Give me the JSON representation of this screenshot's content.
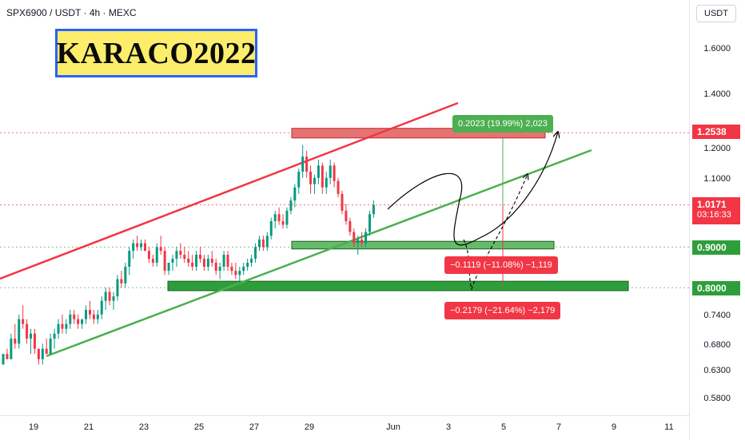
{
  "header": {
    "symbol": "SPX6900 / USDT · 4h · MEXC"
  },
  "watermark": {
    "text": "KARACO2022"
  },
  "axis": {
    "currency": "USDT",
    "price_ticks": [
      "1.6000",
      "1.4000",
      "1.2000",
      "1.1000",
      "0.7400",
      "0.6800",
      "0.6300",
      "0.5800"
    ],
    "time_ticks": [
      "19",
      "21",
      "23",
      "25",
      "27",
      "29",
      "Jun",
      "3",
      "5",
      "7",
      "9",
      "11"
    ]
  },
  "badges": {
    "target": "1.2538",
    "current_price": "1.0171",
    "countdown": "03:16:33",
    "support_1": "0.9000",
    "support_2": "0.8000"
  },
  "annotations": {
    "gain": "0.2023 (19.99%) 2,023",
    "loss_1": "−0.1119 (−11.08%) −1,119",
    "loss_2": "−0.2179 (−21.64%) −2,179"
  },
  "colors": {
    "up": "#089981",
    "down": "#f23645",
    "channel_top": "#f23645",
    "channel_bottom": "#4caf50",
    "brand_bg": "#fcee6b",
    "brand_border": "#2962ff",
    "target_zone": "#e57373",
    "support_zone": "#66bb6a",
    "support_zone_dark": "#2e9e3a"
  },
  "icons": {
    "currency": "dropdown-icon"
  },
  "chart_data": {
    "type": "candlestick",
    "title": "SPX6900 / USDT · 4h · MEXC",
    "ylim": [
      0.56,
      1.7
    ],
    "y_scale": "log",
    "x_labels": [
      "19",
      "21",
      "23",
      "25",
      "27",
      "29",
      "Jun",
      "3",
      "5",
      "7",
      "9",
      "11"
    ],
    "candles": [
      [
        0.64,
        0.66,
        0.64,
        0.66
      ],
      [
        0.66,
        0.67,
        0.65,
        0.65
      ],
      [
        0.65,
        0.7,
        0.65,
        0.69
      ],
      [
        0.69,
        0.72,
        0.67,
        0.68
      ],
      [
        0.68,
        0.74,
        0.67,
        0.73
      ],
      [
        0.73,
        0.76,
        0.71,
        0.72
      ],
      [
        0.72,
        0.73,
        0.68,
        0.69
      ],
      [
        0.69,
        0.71,
        0.66,
        0.7
      ],
      [
        0.7,
        0.71,
        0.66,
        0.67
      ],
      [
        0.67,
        0.67,
        0.64,
        0.65
      ],
      [
        0.65,
        0.68,
        0.64,
        0.67
      ],
      [
        0.67,
        0.69,
        0.66,
        0.66
      ],
      [
        0.66,
        0.7,
        0.66,
        0.69
      ],
      [
        0.69,
        0.71,
        0.67,
        0.7
      ],
      [
        0.7,
        0.73,
        0.69,
        0.72
      ],
      [
        0.72,
        0.74,
        0.7,
        0.71
      ],
      [
        0.71,
        0.73,
        0.7,
        0.72
      ],
      [
        0.72,
        0.75,
        0.71,
        0.74
      ],
      [
        0.74,
        0.75,
        0.72,
        0.73
      ],
      [
        0.73,
        0.74,
        0.71,
        0.72
      ],
      [
        0.72,
        0.73,
        0.71,
        0.73
      ],
      [
        0.73,
        0.76,
        0.72,
        0.75
      ],
      [
        0.75,
        0.77,
        0.73,
        0.74
      ],
      [
        0.74,
        0.75,
        0.72,
        0.73
      ],
      [
        0.73,
        0.75,
        0.72,
        0.74
      ],
      [
        0.74,
        0.78,
        0.73,
        0.77
      ],
      [
        0.77,
        0.8,
        0.75,
        0.79
      ],
      [
        0.79,
        0.8,
        0.76,
        0.77
      ],
      [
        0.77,
        0.79,
        0.75,
        0.78
      ],
      [
        0.78,
        0.83,
        0.77,
        0.82
      ],
      [
        0.82,
        0.84,
        0.8,
        0.81
      ],
      [
        0.81,
        0.86,
        0.8,
        0.85
      ],
      [
        0.85,
        0.9,
        0.83,
        0.89
      ],
      [
        0.89,
        0.92,
        0.87,
        0.91
      ],
      [
        0.91,
        0.93,
        0.89,
        0.9
      ],
      [
        0.9,
        0.92,
        0.89,
        0.91
      ],
      [
        0.91,
        0.92,
        0.89,
        0.89
      ],
      [
        0.89,
        0.9,
        0.86,
        0.87
      ],
      [
        0.87,
        0.88,
        0.85,
        0.86
      ],
      [
        0.86,
        0.91,
        0.85,
        0.9
      ],
      [
        0.9,
        0.93,
        0.88,
        0.89
      ],
      [
        0.89,
        0.9,
        0.83,
        0.84
      ],
      [
        0.84,
        0.86,
        0.83,
        0.86
      ],
      [
        0.86,
        0.88,
        0.84,
        0.87
      ],
      [
        0.87,
        0.9,
        0.85,
        0.89
      ],
      [
        0.89,
        0.91,
        0.87,
        0.88
      ],
      [
        0.88,
        0.9,
        0.86,
        0.87
      ],
      [
        0.87,
        0.89,
        0.85,
        0.86
      ],
      [
        0.86,
        0.88,
        0.84,
        0.85
      ],
      [
        0.85,
        0.89,
        0.84,
        0.88
      ],
      [
        0.88,
        0.9,
        0.86,
        0.87
      ],
      [
        0.87,
        0.88,
        0.84,
        0.85
      ],
      [
        0.85,
        0.88,
        0.84,
        0.87
      ],
      [
        0.87,
        0.89,
        0.85,
        0.86
      ],
      [
        0.86,
        0.87,
        0.83,
        0.84
      ],
      [
        0.84,
        0.86,
        0.82,
        0.85
      ],
      [
        0.85,
        0.89,
        0.84,
        0.88
      ],
      [
        0.88,
        0.89,
        0.84,
        0.85
      ],
      [
        0.85,
        0.86,
        0.83,
        0.84
      ],
      [
        0.84,
        0.86,
        0.82,
        0.83
      ],
      [
        0.83,
        0.85,
        0.81,
        0.84
      ],
      [
        0.84,
        0.86,
        0.83,
        0.85
      ],
      [
        0.85,
        0.87,
        0.84,
        0.86
      ],
      [
        0.86,
        0.88,
        0.85,
        0.87
      ],
      [
        0.87,
        0.91,
        0.86,
        0.9
      ],
      [
        0.9,
        0.93,
        0.89,
        0.92
      ],
      [
        0.92,
        0.93,
        0.89,
        0.9
      ],
      [
        0.9,
        0.94,
        0.89,
        0.93
      ],
      [
        0.93,
        0.98,
        0.92,
        0.97
      ],
      [
        0.97,
        1.0,
        0.95,
        0.99
      ],
      [
        0.99,
        1.01,
        0.96,
        0.97
      ],
      [
        0.97,
        0.99,
        0.95,
        0.96
      ],
      [
        0.96,
        1.01,
        0.95,
        1.0
      ],
      [
        1.0,
        1.04,
        0.99,
        1.03
      ],
      [
        1.03,
        1.08,
        1.01,
        1.07
      ],
      [
        1.07,
        1.13,
        1.05,
        1.12
      ],
      [
        1.12,
        1.21,
        1.1,
        1.17
      ],
      [
        1.17,
        1.19,
        1.1,
        1.12
      ],
      [
        1.12,
        1.14,
        1.05,
        1.08
      ],
      [
        1.08,
        1.11,
        1.05,
        1.1
      ],
      [
        1.1,
        1.16,
        1.08,
        1.14
      ],
      [
        1.14,
        1.15,
        1.05,
        1.07
      ],
      [
        1.07,
        1.12,
        1.05,
        1.1
      ],
      [
        1.1,
        1.16,
        1.08,
        1.14
      ],
      [
        1.14,
        1.15,
        1.07,
        1.09
      ],
      [
        1.09,
        1.1,
        1.04,
        1.05
      ],
      [
        1.05,
        1.06,
        0.99,
        1.0
      ],
      [
        1.0,
        1.02,
        0.96,
        0.97
      ],
      [
        0.97,
        0.98,
        0.93,
        0.94
      ],
      [
        0.94,
        0.95,
        0.9,
        0.91
      ],
      [
        0.91,
        0.93,
        0.88,
        0.92
      ],
      [
        0.92,
        0.94,
        0.9,
        0.91
      ],
      [
        0.91,
        0.95,
        0.9,
        0.94
      ],
      [
        0.94,
        1.0,
        0.93,
        0.99
      ],
      [
        0.99,
        1.03,
        0.98,
        1.0171
      ]
    ]
  }
}
